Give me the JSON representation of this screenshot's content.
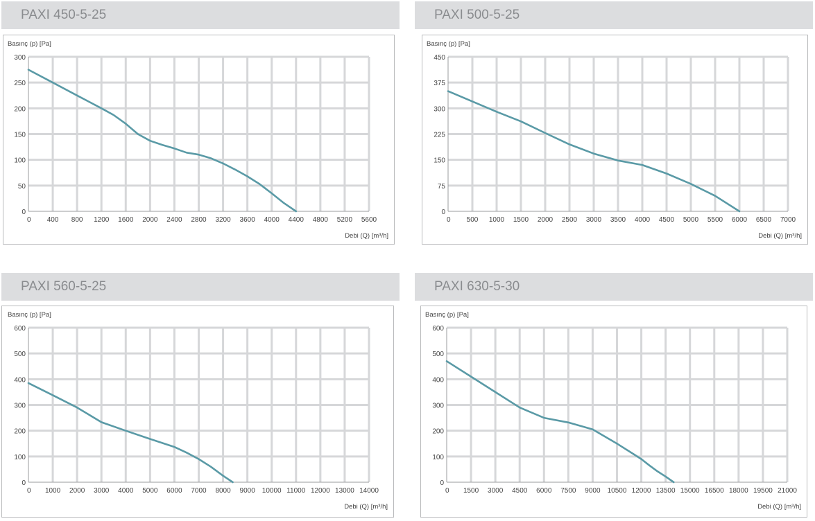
{
  "colors": {
    "curve": "#5a9aa6",
    "grid": "#d6d7d9",
    "header_bg": "#dcdddf",
    "header_text": "#8a8c8f"
  },
  "charts": [
    {
      "title": "PAXI 450-5-25",
      "ylabel": "Basınç (p) [Pa]",
      "xlabel": "Debi (Q) [m³/h]"
    },
    {
      "title": "PAXI 500-5-25",
      "ylabel": "Basınç (p) [Pa]",
      "xlabel": "Debi (Q) [m³/h]"
    },
    {
      "title": "PAXI 560-5-25",
      "ylabel": "Basınç (p) [Pa]",
      "xlabel": "Debi (Q) [m³/h]"
    },
    {
      "title": "PAXI 630-5-30",
      "ylabel": "Basınç (p) [Pa]",
      "xlabel": "Debi (Q) [m³/h]"
    }
  ],
  "chart_data": [
    {
      "type": "line",
      "title": "PAXI 450-5-25",
      "xlabel": "Debi (Q) [m³/h]",
      "ylabel": "Basınç (p) [Pa]",
      "xlim": [
        0,
        5600
      ],
      "ylim": [
        0,
        300
      ],
      "x_ticks": [
        0,
        400,
        800,
        1200,
        1600,
        2000,
        2400,
        2800,
        3200,
        3600,
        4000,
        4400,
        4800,
        5200,
        5600
      ],
      "y_ticks": [
        0,
        50,
        100,
        150,
        200,
        250,
        300
      ],
      "grid": true,
      "series": [
        {
          "x": [
            0,
            400,
            800,
            1200,
            1400,
            1600,
            1800,
            2000,
            2200,
            2400,
            2600,
            2800,
            3000,
            3200,
            3400,
            3600,
            3800,
            4000,
            4200,
            4400
          ],
          "y": [
            275,
            250,
            225,
            200,
            187,
            170,
            150,
            137,
            129,
            122,
            114,
            110,
            103,
            93,
            81,
            68,
            53,
            35,
            16,
            0
          ]
        }
      ]
    },
    {
      "type": "line",
      "title": "PAXI 500-5-25",
      "xlabel": "Debi (Q) [m³/h]",
      "ylabel": "Basınç (p) [Pa]",
      "xlim": [
        0,
        7000
      ],
      "ylim": [
        0,
        450
      ],
      "x_ticks": [
        0,
        500,
        1000,
        1500,
        2000,
        2500,
        3000,
        3500,
        4000,
        4500,
        5000,
        5500,
        6000,
        6500,
        7000
      ],
      "y_ticks": [
        0,
        75,
        150,
        225,
        300,
        375,
        450
      ],
      "grid": true,
      "series": [
        {
          "x": [
            0,
            500,
            1000,
            1500,
            2000,
            2500,
            3000,
            3500,
            4000,
            4500,
            5000,
            5500,
            6000
          ],
          "y": [
            350,
            320,
            290,
            262,
            228,
            195,
            168,
            148,
            135,
            110,
            80,
            45,
            0
          ]
        }
      ]
    },
    {
      "type": "line",
      "title": "PAXI 560-5-25",
      "xlabel": "Debi (Q) [m³/h]",
      "ylabel": "Basınç (p) [Pa]",
      "xlim": [
        0,
        14000
      ],
      "ylim": [
        0,
        600
      ],
      "x_ticks": [
        0,
        1000,
        2000,
        3000,
        4000,
        5000,
        6000,
        7000,
        8000,
        9000,
        10000,
        11000,
        12000,
        13000,
        14000
      ],
      "y_ticks": [
        0,
        100,
        200,
        300,
        400,
        500,
        600
      ],
      "grid": true,
      "series": [
        {
          "x": [
            0,
            1000,
            2000,
            3000,
            4000,
            5000,
            6000,
            6500,
            7000,
            7500,
            8000,
            8400
          ],
          "y": [
            385,
            338,
            290,
            233,
            200,
            168,
            137,
            115,
            90,
            60,
            25,
            0
          ]
        }
      ]
    },
    {
      "type": "line",
      "title": "PAXI 630-5-30",
      "xlabel": "Debi (Q) [m³/h]",
      "ylabel": "Basınç (p) [Pa]",
      "xlim": [
        0,
        21000
      ],
      "ylim": [
        0,
        600
      ],
      "x_ticks": [
        0,
        1500,
        3000,
        4500,
        6000,
        7500,
        9000,
        10500,
        12000,
        13500,
        15000,
        16500,
        18000,
        19500,
        21000
      ],
      "y_ticks": [
        0,
        100,
        200,
        300,
        400,
        500,
        600
      ],
      "grid": true,
      "series": [
        {
          "x": [
            0,
            1500,
            3000,
            4500,
            6000,
            7500,
            9000,
            10500,
            11500,
            12000,
            12500,
            13000,
            13500,
            14000
          ],
          "y": [
            470,
            410,
            350,
            290,
            250,
            232,
            205,
            150,
            110,
            90,
            65,
            42,
            22,
            0
          ]
        }
      ]
    }
  ]
}
